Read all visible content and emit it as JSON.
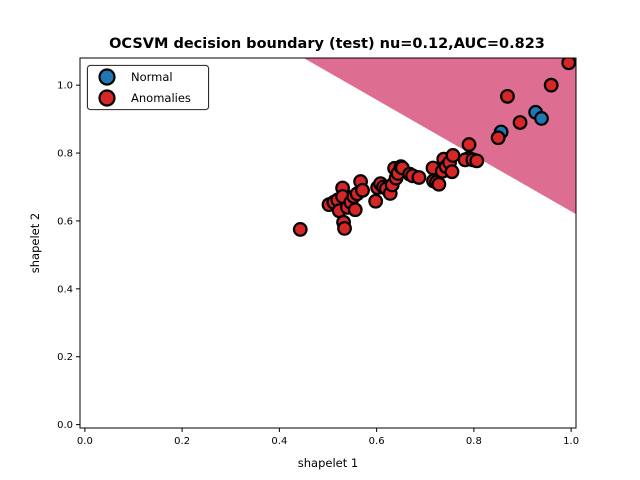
{
  "chart_data": {
    "type": "scatter",
    "title": "OCSVM decision boundary (test) nu=0.12,AUC=0.823",
    "xlabel": "shapelet 1",
    "ylabel": "shapelet 2",
    "xlim": [
      -0.01,
      1.01
    ],
    "ylim": [
      -0.01,
      1.08
    ],
    "xticks": [
      "0.0",
      "0.2",
      "0.4",
      "0.6",
      "0.8",
      "1.0"
    ],
    "yticks": [
      "0.0",
      "0.2",
      "0.4",
      "0.6",
      "0.8",
      "1.0"
    ],
    "grid": false,
    "legend_position": "top-left",
    "decision_region": {
      "polygon": [
        [
          0.45,
          1.08
        ],
        [
          1.01,
          1.08
        ],
        [
          1.01,
          0.62
        ]
      ],
      "color": "#dd6d91"
    },
    "series": [
      {
        "name": "Normal",
        "color": "#1f77b4",
        "points": [
          [
            0.856,
            0.862
          ],
          [
            0.927,
            0.92
          ],
          [
            0.939,
            0.902
          ],
          [
            0.79,
            0.785
          ]
        ]
      },
      {
        "name": "Anomalies",
        "color": "#d62728",
        "points": [
          [
            0.443,
            0.575
          ],
          [
            0.502,
            0.648
          ],
          [
            0.512,
            0.655
          ],
          [
            0.52,
            0.662
          ],
          [
            0.523,
            0.63
          ],
          [
            0.53,
            0.697
          ],
          [
            0.53,
            0.672
          ],
          [
            0.532,
            0.596
          ],
          [
            0.534,
            0.578
          ],
          [
            0.54,
            0.64
          ],
          [
            0.547,
            0.655
          ],
          [
            0.553,
            0.672
          ],
          [
            0.556,
            0.633
          ],
          [
            0.56,
            0.68
          ],
          [
            0.567,
            0.716
          ],
          [
            0.571,
            0.69
          ],
          [
            0.598,
            0.658
          ],
          [
            0.602,
            0.698
          ],
          [
            0.608,
            0.71
          ],
          [
            0.614,
            0.7
          ],
          [
            0.62,
            0.695
          ],
          [
            0.628,
            0.681
          ],
          [
            0.632,
            0.706
          ],
          [
            0.637,
            0.755
          ],
          [
            0.64,
            0.726
          ],
          [
            0.644,
            0.74
          ],
          [
            0.65,
            0.76
          ],
          [
            0.653,
            0.756
          ],
          [
            0.668,
            0.738
          ],
          [
            0.674,
            0.733
          ],
          [
            0.687,
            0.728
          ],
          [
            0.716,
            0.756
          ],
          [
            0.717,
            0.718
          ],
          [
            0.723,
            0.714
          ],
          [
            0.728,
            0.708
          ],
          [
            0.735,
            0.746
          ],
          [
            0.738,
            0.782
          ],
          [
            0.743,
            0.76
          ],
          [
            0.75,
            0.772
          ],
          [
            0.755,
            0.745
          ],
          [
            0.757,
            0.793
          ],
          [
            0.782,
            0.78
          ],
          [
            0.79,
            0.825
          ],
          [
            0.798,
            0.78
          ],
          [
            0.806,
            0.777
          ],
          [
            0.85,
            0.845
          ],
          [
            0.869,
            0.967
          ],
          [
            0.895,
            0.89
          ],
          [
            0.959,
            1.0
          ],
          [
            0.995,
            1.066
          ]
        ]
      }
    ]
  }
}
